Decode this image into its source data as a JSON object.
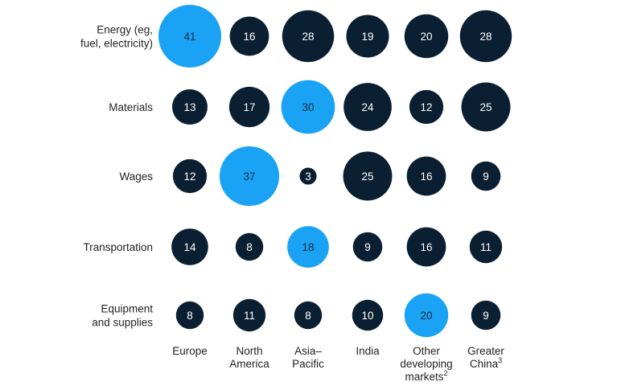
{
  "chart_data": {
    "type": "bubble-grid",
    "rows": [
      {
        "label": [
          "Energy (eg,",
          "fuel, electricity)"
        ],
        "values": [
          41,
          16,
          28,
          19,
          20,
          28
        ],
        "highlight": 0
      },
      {
        "label": [
          "Materials"
        ],
        "values": [
          13,
          17,
          30,
          24,
          12,
          25
        ],
        "highlight": 2
      },
      {
        "label": [
          "Wages"
        ],
        "values": [
          12,
          37,
          3,
          25,
          16,
          9
        ],
        "highlight": 1
      },
      {
        "label": [
          "Transportation"
        ],
        "values": [
          14,
          8,
          18,
          9,
          16,
          11
        ],
        "highlight": 2
      },
      {
        "label": [
          "Equipment",
          "and supplies"
        ],
        "values": [
          8,
          11,
          8,
          10,
          20,
          9
        ],
        "highlight": 4
      }
    ],
    "columns": [
      {
        "lines": [
          "Europe"
        ],
        "sup": ""
      },
      {
        "lines": [
          "North",
          "America"
        ],
        "sup": ""
      },
      {
        "lines": [
          "Asia–",
          "Pacific"
        ],
        "sup": ""
      },
      {
        "lines": [
          "India"
        ],
        "sup": ""
      },
      {
        "lines": [
          "Other",
          "developing",
          "markets"
        ],
        "sup": "2"
      },
      {
        "lines": [
          "Greater",
          "China"
        ],
        "sup": "3"
      }
    ],
    "colors": {
      "default": "#0b1f33",
      "highlight": "#1aa3f5"
    }
  }
}
